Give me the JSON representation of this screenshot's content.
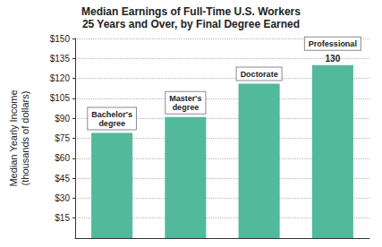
{
  "chart_data": {
    "type": "bar",
    "title": "Median Earnings of Full-Time U.S. Workers",
    "subtitle": "25 Years and Over, by Final Degree Earned",
    "ylabel": "Median Yearly Income\n(thousands of dollars)",
    "categories": [
      "Bachelor's\ndegree",
      "Master's\ndegree",
      "Doctorate",
      "Professional"
    ],
    "values": [
      79,
      91,
      116,
      130
    ],
    "color": "#52b99a",
    "annotations": [
      {
        "category": "Professional",
        "text": "130"
      }
    ],
    "ylim": [
      0,
      150
    ],
    "yticks": [
      {
        "value": 15,
        "label": "$15"
      },
      {
        "value": 30,
        "label": "$30"
      },
      {
        "value": 45,
        "label": "$45"
      },
      {
        "value": 60,
        "label": "$60"
      },
      {
        "value": 75,
        "label": "$75"
      },
      {
        "value": 90,
        "label": "$90"
      },
      {
        "value": 105,
        "label": "$105"
      },
      {
        "value": 120,
        "label": "$120"
      },
      {
        "value": 135,
        "label": "$135"
      },
      {
        "value": 150,
        "label": "$150"
      }
    ],
    "grid": true,
    "tick_labels": "y"
  }
}
